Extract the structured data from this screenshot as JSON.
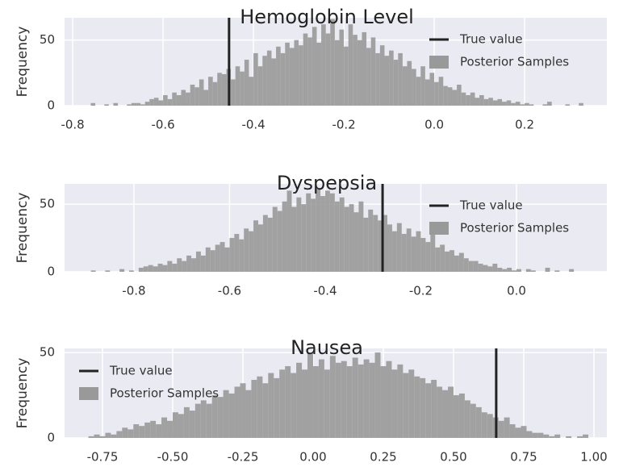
{
  "chart_data": [
    {
      "type": "histogram",
      "title": "Hemoglobin Level",
      "ylabel": "Frequency",
      "color": "#999999",
      "hist_name": "Posterior Samples",
      "true_value": {
        "name": "True value",
        "value": -0.454,
        "color": "#222222"
      },
      "legend": "upper right",
      "grid": true,
      "xlim": [
        -0.818,
        0.382
      ],
      "ylim": [
        0,
        67
      ],
      "xticks": [
        -0.8,
        -0.6,
        -0.4,
        -0.2,
        {
          "value": 0,
          "label": "0.0"
        },
        0.2
      ],
      "yticks": [
        0,
        50
      ],
      "bins": [
        -0.77,
        -0.76,
        -0.75,
        -0.74,
        -0.73,
        -0.72,
        -0.71,
        -0.7,
        -0.69,
        -0.68,
        -0.67,
        -0.66,
        -0.65,
        -0.64,
        -0.63,
        -0.62,
        -0.61,
        -0.6,
        -0.59,
        -0.58,
        -0.57,
        -0.56,
        -0.55,
        -0.54,
        -0.53,
        -0.52,
        -0.51,
        -0.5,
        -0.49,
        -0.48,
        -0.47,
        -0.46,
        -0.45,
        -0.44,
        -0.43,
        -0.42,
        -0.41,
        -0.4,
        -0.39,
        -0.38,
        -0.37,
        -0.36,
        -0.35,
        -0.34,
        -0.33,
        -0.32,
        -0.31,
        -0.3,
        -0.29,
        -0.28,
        -0.27,
        -0.26,
        -0.25,
        -0.24,
        -0.23,
        -0.22,
        -0.21,
        -0.2,
        -0.19,
        -0.18,
        -0.17,
        -0.16,
        -0.15,
        -0.14,
        -0.13,
        -0.12,
        -0.11,
        -0.1,
        -0.09,
        -0.08,
        -0.07,
        -0.06,
        -0.05,
        -0.04,
        -0.03,
        -0.02,
        -0.01,
        0.0,
        0.01,
        0.02,
        0.03,
        0.04,
        0.05,
        0.06,
        0.07,
        0.08,
        0.09,
        0.1,
        0.11,
        0.12,
        0.13,
        0.14,
        0.15,
        0.16,
        0.17,
        0.18,
        0.19,
        0.2,
        0.21,
        0.22,
        0.23,
        0.24,
        0.25,
        0.26,
        0.27,
        0.28,
        0.29,
        0.3,
        0.31,
        0.32,
        0.33
      ],
      "counts": [
        0,
        2,
        0,
        0,
        1,
        0,
        2,
        0,
        0,
        1,
        2,
        2,
        1,
        3,
        5,
        6,
        4,
        8,
        5,
        10,
        8,
        12,
        10,
        16,
        14,
        20,
        12,
        22,
        18,
        25,
        24,
        28,
        20,
        30,
        26,
        35,
        22,
        40,
        30,
        38,
        42,
        36,
        45,
        40,
        48,
        44,
        50,
        46,
        55,
        52,
        60,
        48,
        62,
        55,
        66,
        50,
        58,
        45,
        62,
        54,
        50,
        56,
        44,
        52,
        40,
        46,
        38,
        42,
        35,
        40,
        30,
        34,
        28,
        22,
        30,
        20,
        25,
        18,
        22,
        15,
        14,
        12,
        16,
        10,
        8,
        10,
        6,
        8,
        5,
        6,
        4,
        5,
        3,
        4,
        2,
        3,
        1,
        2,
        1,
        0,
        0,
        1,
        3,
        0,
        0,
        0,
        1,
        0,
        0,
        2
      ]
    },
    {
      "type": "histogram",
      "title": "Dyspepsia",
      "ylabel": "Frequency",
      "color": "#999999",
      "hist_name": "Posterior Samples",
      "true_value": {
        "name": "True value",
        "value": -0.28,
        "color": "#222222"
      },
      "legend": "upper right",
      "grid": true,
      "xlim": [
        -0.945,
        0.189
      ],
      "ylim": [
        0,
        65
      ],
      "xticks": [
        -0.8,
        -0.6,
        -0.4,
        -0.2,
        {
          "value": 0,
          "label": "0.0"
        }
      ],
      "yticks": [
        0,
        50
      ],
      "bins": [
        -0.89,
        -0.88,
        -0.87,
        -0.86,
        -0.85,
        -0.84,
        -0.83,
        -0.82,
        -0.81,
        -0.8,
        -0.79,
        -0.78,
        -0.77,
        -0.76,
        -0.75,
        -0.74,
        -0.73,
        -0.72,
        -0.71,
        -0.7,
        -0.69,
        -0.68,
        -0.67,
        -0.66,
        -0.65,
        -0.64,
        -0.63,
        -0.62,
        -0.61,
        -0.6,
        -0.59,
        -0.58,
        -0.57,
        -0.56,
        -0.55,
        -0.54,
        -0.53,
        -0.52,
        -0.51,
        -0.5,
        -0.49,
        -0.48,
        -0.47,
        -0.46,
        -0.45,
        -0.44,
        -0.43,
        -0.42,
        -0.41,
        -0.4,
        -0.39,
        -0.38,
        -0.37,
        -0.36,
        -0.35,
        -0.34,
        -0.33,
        -0.32,
        -0.31,
        -0.3,
        -0.29,
        -0.28,
        -0.27,
        -0.26,
        -0.25,
        -0.24,
        -0.23,
        -0.22,
        -0.21,
        -0.2,
        -0.19,
        -0.18,
        -0.17,
        -0.16,
        -0.15,
        -0.14,
        -0.13,
        -0.12,
        -0.11,
        -0.1,
        -0.09,
        -0.08,
        -0.07,
        -0.06,
        -0.05,
        -0.04,
        -0.03,
        -0.02,
        -0.01,
        0.0,
        0.01,
        0.02,
        0.03,
        0.04,
        0.05,
        0.06,
        0.07,
        0.08,
        0.09,
        0.1,
        0.11,
        0.12,
        0.13
      ],
      "counts": [
        1,
        0,
        0,
        1,
        0,
        0,
        2,
        0,
        1,
        0,
        3,
        4,
        5,
        4,
        6,
        5,
        8,
        6,
        10,
        8,
        12,
        10,
        15,
        12,
        18,
        16,
        20,
        22,
        18,
        25,
        28,
        24,
        32,
        30,
        38,
        35,
        42,
        40,
        48,
        45,
        52,
        60,
        48,
        55,
        50,
        58,
        54,
        62,
        56,
        60,
        58,
        52,
        55,
        48,
        50,
        44,
        52,
        40,
        46,
        42,
        38,
        42,
        35,
        30,
        36,
        28,
        32,
        26,
        30,
        25,
        22,
        28,
        18,
        20,
        15,
        16,
        12,
        14,
        10,
        8,
        8,
        6,
        5,
        4,
        6,
        3,
        2,
        3,
        1,
        2,
        0,
        2,
        1,
        0,
        0,
        3,
        0,
        1,
        0,
        0,
        2,
        0
      ]
    },
    {
      "type": "histogram",
      "title": "Nausea",
      "ylabel": "Frequency",
      "color": "#999999",
      "hist_name": "Posterior Samples",
      "true_value": {
        "name": "True value",
        "value": 0.652,
        "color": "#222222"
      },
      "legend": "upper left",
      "grid": true,
      "xlim": [
        -0.885,
        1.046
      ],
      "ylim": [
        0,
        52.4
      ],
      "xticks": [
        -0.75,
        {
          "value": -0.5,
          "label": "-0.50"
        },
        -0.25,
        {
          "value": 0,
          "label": "0.00"
        },
        0.25,
        {
          "value": 0.5,
          "label": "0.50"
        },
        0.75,
        {
          "value": 1,
          "label": "1.00"
        }
      ],
      "yticks": [
        0,
        50
      ],
      "bins": [
        -0.8,
        -0.78,
        -0.76,
        -0.74,
        -0.72,
        -0.7,
        -0.68,
        -0.66,
        -0.64,
        -0.62,
        -0.6,
        -0.58,
        -0.56,
        -0.54,
        -0.52,
        -0.5,
        -0.48,
        -0.46,
        -0.44,
        -0.42,
        -0.4,
        -0.38,
        -0.36,
        -0.34,
        -0.32,
        -0.3,
        -0.28,
        -0.26,
        -0.24,
        -0.22,
        -0.2,
        -0.18,
        -0.16,
        -0.14,
        -0.12,
        -0.1,
        -0.08,
        -0.06,
        -0.04,
        -0.02,
        0.0,
        0.02,
        0.04,
        0.06,
        0.08,
        0.1,
        0.12,
        0.14,
        0.16,
        0.18,
        0.2,
        0.22,
        0.24,
        0.26,
        0.28,
        0.3,
        0.32,
        0.34,
        0.36,
        0.38,
        0.4,
        0.42,
        0.44,
        0.46,
        0.48,
        0.5,
        0.52,
        0.54,
        0.56,
        0.58,
        0.6,
        0.62,
        0.64,
        0.66,
        0.68,
        0.7,
        0.72,
        0.74,
        0.76,
        0.78,
        0.8,
        0.82,
        0.84,
        0.86,
        0.88,
        0.9,
        0.92,
        0.94,
        0.96,
        0.98
      ],
      "counts": [
        1,
        2,
        1,
        3,
        2,
        4,
        6,
        5,
        8,
        7,
        9,
        10,
        8,
        12,
        10,
        15,
        14,
        18,
        16,
        20,
        22,
        20,
        25,
        24,
        28,
        26,
        30,
        32,
        28,
        34,
        36,
        32,
        38,
        35,
        40,
        42,
        38,
        44,
        40,
        50,
        42,
        46,
        40,
        48,
        44,
        45,
        42,
        47,
        43,
        46,
        44,
        50,
        42,
        45,
        40,
        43,
        38,
        40,
        36,
        35,
        32,
        34,
        30,
        28,
        30,
        25,
        26,
        22,
        20,
        18,
        15,
        14,
        12,
        10,
        12,
        8,
        6,
        7,
        4,
        3,
        3,
        2,
        1,
        2,
        0,
        1,
        0,
        1,
        2
      ]
    }
  ]
}
